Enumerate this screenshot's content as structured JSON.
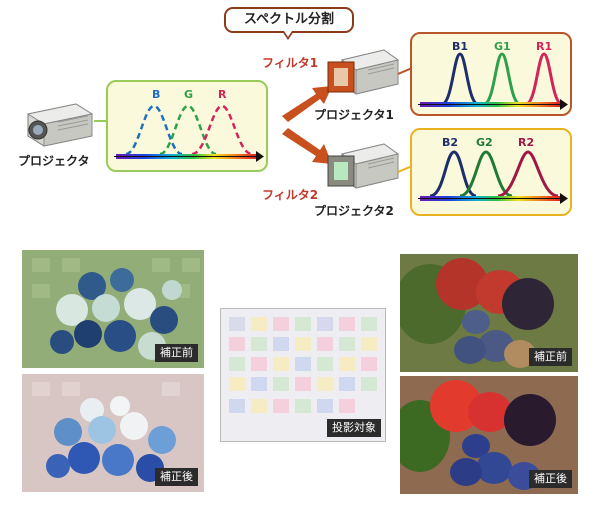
{
  "callout": {
    "text": "スペクトル分割"
  },
  "labels": {
    "projector": "プロジェクタ",
    "filter1": "フィルタ1",
    "filter2": "フィルタ2",
    "projector1": "プロジェクタ1",
    "projector2": "プロジェクタ2"
  },
  "spectra": {
    "main": [
      "B",
      "G",
      "R"
    ],
    "proj1": [
      "B1",
      "G1",
      "R1"
    ],
    "proj2": [
      "B2",
      "G2",
      "R2"
    ]
  },
  "colors": {
    "blue": "#1f6fbf",
    "green": "#2ea04a",
    "red": "#d0245a",
    "navy": "#1c2f6b",
    "darkgreen": "#1f7a35",
    "crimson": "#a01845",
    "arrow": "#c8501e"
  },
  "photos": {
    "flower_before": "補正前",
    "flower_after": "補正後",
    "target": "投影対象",
    "fruit_before": "補正前",
    "fruit_after": "補正後"
  }
}
